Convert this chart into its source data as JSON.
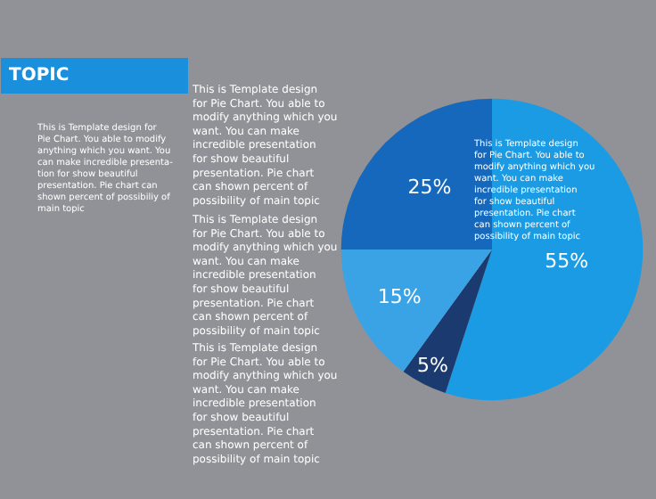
{
  "chart_data": {
    "type": "pie",
    "title": "TOPIC",
    "categories": [
      null,
      null,
      null,
      null
    ],
    "values": [
      55,
      5,
      15,
      25
    ],
    "colors": [
      "#1a9be3",
      "#1b3a70",
      "#3aa3e6",
      "#1668bd"
    ],
    "value_labels": [
      "55%",
      "5%",
      "15%",
      "25%"
    ],
    "annotations": [
      "This is Template design for Pie Chart. You able to modify anything which you want. You can make incredible presenta- tion for show beautiful presentation. Pie chart can shown percent of possibiliy of main topic",
      "This is Template design for Pie Chart. You able to modify anything which you want. You can make incredible presentation for show beautiful presentation. Pie chart can shown percent of possibility of main topic",
      "This is Template design for Pie Chart. You able to modify anything which you want. You can make incredible presentation for show beautiful presentation. Pie chart can shown percent of possibility of main topic",
      "This is Template design for Pie Chart. You able to modify anything which you want. You can make incredible presentation for show beautiful presentation. Pie chart can shown percent of possibility of main topic",
      "This is Template design for Pie Chart. You able to modify anything which you want. You can make incredible presentation for show beautiful presentation. Pie chart can shown percent of possibility of main topic"
    ]
  }
}
